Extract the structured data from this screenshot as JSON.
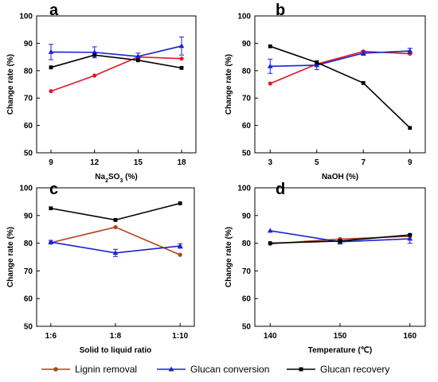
{
  "colors": {
    "lignin": "#b5401c",
    "glucan_conversion": "#1a22d6",
    "glucan_recovery": "#000000",
    "red_series": "#e8152b"
  },
  "legend": [
    {
      "key": "lignin",
      "label": "Lignin removal",
      "marker": "circle"
    },
    {
      "key": "glucan_conversion",
      "label": "Glucan conversion",
      "marker": "triangle"
    },
    {
      "key": "glucan_recovery",
      "label": "Glucan recovery",
      "marker": "square"
    }
  ],
  "chart_data": [
    {
      "panel": "a",
      "type": "line",
      "xlabel_parts": [
        "Na",
        "2",
        "SO",
        "3",
        " (%)"
      ],
      "ylabel": "Change rate (%)",
      "x_ticks": [
        "9",
        "12",
        "15",
        "18"
      ],
      "ylim": [
        50,
        100
      ],
      "y_ticks": [
        50,
        60,
        70,
        80,
        90,
        100
      ],
      "series": [
        {
          "key": "red_series",
          "values": [
            72.5,
            78.2,
            85.0,
            84.4
          ],
          "marker": "circle",
          "errors": [
            0,
            0,
            0,
            0
          ]
        },
        {
          "key": "glucan_conversion",
          "values": [
            86.8,
            86.7,
            85.2,
            89.0
          ],
          "marker": "triangle",
          "errors": [
            2.8,
            2.0,
            1.2,
            3.3
          ]
        },
        {
          "key": "glucan_recovery",
          "values": [
            81.2,
            85.7,
            83.8,
            81.0
          ],
          "marker": "square",
          "errors": [
            0,
            0,
            0,
            0
          ]
        }
      ]
    },
    {
      "panel": "b",
      "type": "line",
      "xlabel_parts": [
        "NaOH (%)"
      ],
      "ylabel": "Change rate (%)",
      "x_ticks": [
        "3",
        "5",
        "7",
        "9"
      ],
      "ylim": [
        50,
        100
      ],
      "y_ticks": [
        50,
        60,
        70,
        80,
        90,
        100
      ],
      "series": [
        {
          "key": "red_series",
          "values": [
            75.3,
            82.4,
            87.0,
            86.2
          ],
          "marker": "circle",
          "errors": [
            0,
            0,
            0,
            0
          ]
        },
        {
          "key": "glucan_conversion",
          "values": [
            81.6,
            82.0,
            86.4,
            87.2
          ],
          "marker": "triangle",
          "errors": [
            2.6,
            1.6,
            0.8,
            1.0
          ]
        },
        {
          "key": "glucan_recovery",
          "values": [
            88.9,
            83.0,
            75.5,
            59.1
          ],
          "marker": "square",
          "errors": [
            0,
            0,
            0,
            0
          ]
        }
      ]
    },
    {
      "panel": "c",
      "type": "line",
      "xlabel_parts": [
        "Solid to liquid ratio"
      ],
      "ylabel": "Change rate (%)",
      "x_ticks": [
        "1:6",
        "1:8",
        "1:10"
      ],
      "ylim": [
        50,
        100
      ],
      "y_ticks": [
        50,
        60,
        70,
        80,
        90,
        100
      ],
      "series": [
        {
          "key": "lignin",
          "values": [
            80.2,
            85.8,
            75.8
          ],
          "marker": "circle",
          "errors": [
            0,
            0,
            0
          ]
        },
        {
          "key": "glucan_conversion",
          "values": [
            80.4,
            76.5,
            79.0
          ],
          "marker": "triangle",
          "errors": [
            0.6,
            1.3,
            0.8
          ]
        },
        {
          "key": "glucan_recovery",
          "values": [
            92.6,
            88.4,
            94.4
          ],
          "marker": "square",
          "errors": [
            0,
            0,
            0
          ]
        }
      ]
    },
    {
      "panel": "d",
      "type": "line",
      "xlabel_parts": [
        "Temperature (℃)"
      ],
      "ylabel": "Change rate (%)",
      "x_ticks": [
        "140",
        "150",
        "160"
      ],
      "ylim": [
        50,
        100
      ],
      "y_ticks": [
        50,
        60,
        70,
        80,
        90,
        100
      ],
      "series": [
        {
          "key": "lignin",
          "values": [
            79.8,
            81.5,
            82.5
          ],
          "marker": "circle",
          "errors": [
            0,
            0,
            0
          ]
        },
        {
          "key": "glucan_conversion",
          "values": [
            84.5,
            80.5,
            81.6
          ],
          "marker": "triangle",
          "errors": [
            0,
            0.8,
            1.6
          ]
        },
        {
          "key": "glucan_recovery",
          "values": [
            80.0,
            80.8,
            83.0
          ],
          "marker": "square",
          "errors": [
            0,
            0,
            0
          ]
        }
      ]
    }
  ]
}
